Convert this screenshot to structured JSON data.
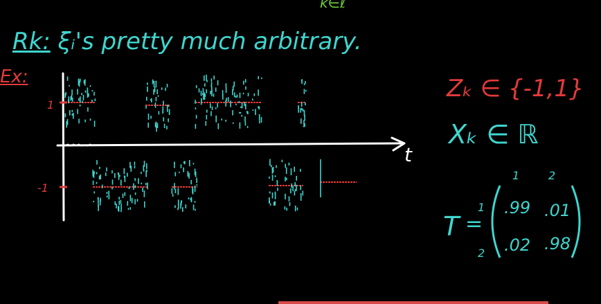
{
  "top_fragment": "k∈ℓ",
  "remark": {
    "label": "Rk:",
    "text": "ξᵢ's pretty much arbitrary."
  },
  "example_label": "Ex:",
  "z_definition": "Zₖ ∈ {-1,1}",
  "x_definition": "Xₖ ∈ ℝ",
  "plot": {
    "y_tick_top": "1",
    "y_tick_bottom": "-1",
    "x_axis_label": "t"
  },
  "matrix": {
    "name": "T",
    "equals": "=",
    "col_labels": [
      "1",
      "2"
    ],
    "row_labels": [
      "1",
      "2"
    ],
    "cells": [
      [
        ".99",
        ".01"
      ],
      [
        ".02",
        ".98"
      ]
    ]
  },
  "colors": {
    "cyan": "#3fd6cf",
    "red": "#e43a3a",
    "white": "#ffffff",
    "green": "#6fd03a"
  }
}
